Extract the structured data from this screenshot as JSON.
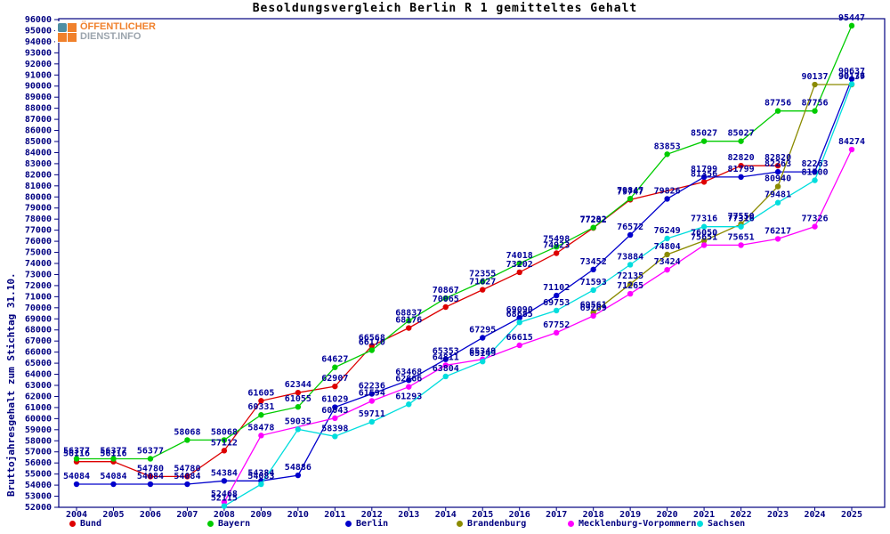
{
  "logo": {
    "line1": "ÖFFENTLICHER",
    "line2": "DIENST.INFO"
  },
  "chart_data": {
    "type": "line",
    "title": "Besoldungsvergleich Berlin R 1 gemitteltes Gehalt",
    "ylabel": "Bruttojahresgehalt zum Stichtag 31.10.",
    "xlabel": "",
    "ylim": [
      52000,
      96000
    ],
    "ytick_step": 1000,
    "grid": false,
    "legend_position": "bottom",
    "point_labels": true,
    "x": [
      2004,
      2005,
      2006,
      2007,
      2008,
      2009,
      2010,
      2011,
      2012,
      2013,
      2014,
      2015,
      2016,
      2017,
      2018,
      2019,
      2020,
      2021,
      2022,
      2023,
      2024,
      2025
    ],
    "series": [
      {
        "name": "Bund",
        "color": "#dd0000",
        "values": [
          56116,
          56116,
          54780,
          54780,
          57112,
          61605,
          62344,
          62907,
          66568,
          68176,
          70065,
          71627,
          73202,
          74923,
          77202,
          79747,
          null,
          81356,
          82820,
          82820,
          null,
          null
        ]
      },
      {
        "name": "Bayern",
        "color": "#00cc00",
        "values": [
          56377,
          56377,
          56377,
          58068,
          58068,
          60331,
          61055,
          64627,
          66170,
          68837,
          70867,
          72355,
          74018,
          75498,
          77232,
          79847,
          83853,
          85027,
          85027,
          87756,
          87756,
          95447
        ]
      },
      {
        "name": "Berlin",
        "color": "#0000cc",
        "values": [
          54084,
          54084,
          54084,
          54084,
          54384,
          54384,
          54886,
          61029,
          62236,
          63468,
          65353,
          67295,
          69090,
          71102,
          73452,
          76572,
          79826,
          81799,
          81799,
          82263,
          82263,
          90637
        ]
      },
      {
        "name": "Brandenburg",
        "color": "#8b8b00",
        "values": [
          null,
          null,
          null,
          null,
          null,
          null,
          null,
          null,
          null,
          null,
          null,
          null,
          null,
          null,
          69561,
          72135,
          74804,
          76050,
          77550,
          80940,
          90137,
          90137
        ]
      },
      {
        "name": "Mecklenburg-Vorpommern",
        "color": "#ff00ff",
        "values": [
          null,
          null,
          null,
          null,
          52468,
          58478,
          null,
          60043,
          61594,
          62866,
          64811,
          65349,
          66615,
          67752,
          69269,
          71265,
          73424,
          75651,
          75651,
          76217,
          77326,
          84274
        ]
      },
      {
        "name": "Sachsen",
        "color": "#00dddd",
        "values": [
          null,
          null,
          null,
          null,
          52115,
          54083,
          59035,
          58398,
          59711,
          61293,
          63804,
          65149,
          68685,
          69753,
          71593,
          73884,
          76249,
          77316,
          77316,
          79481,
          81500,
          90176
        ]
      }
    ],
    "legend_x": [
      78,
      233,
      388,
      513,
      638,
      783
    ]
  }
}
